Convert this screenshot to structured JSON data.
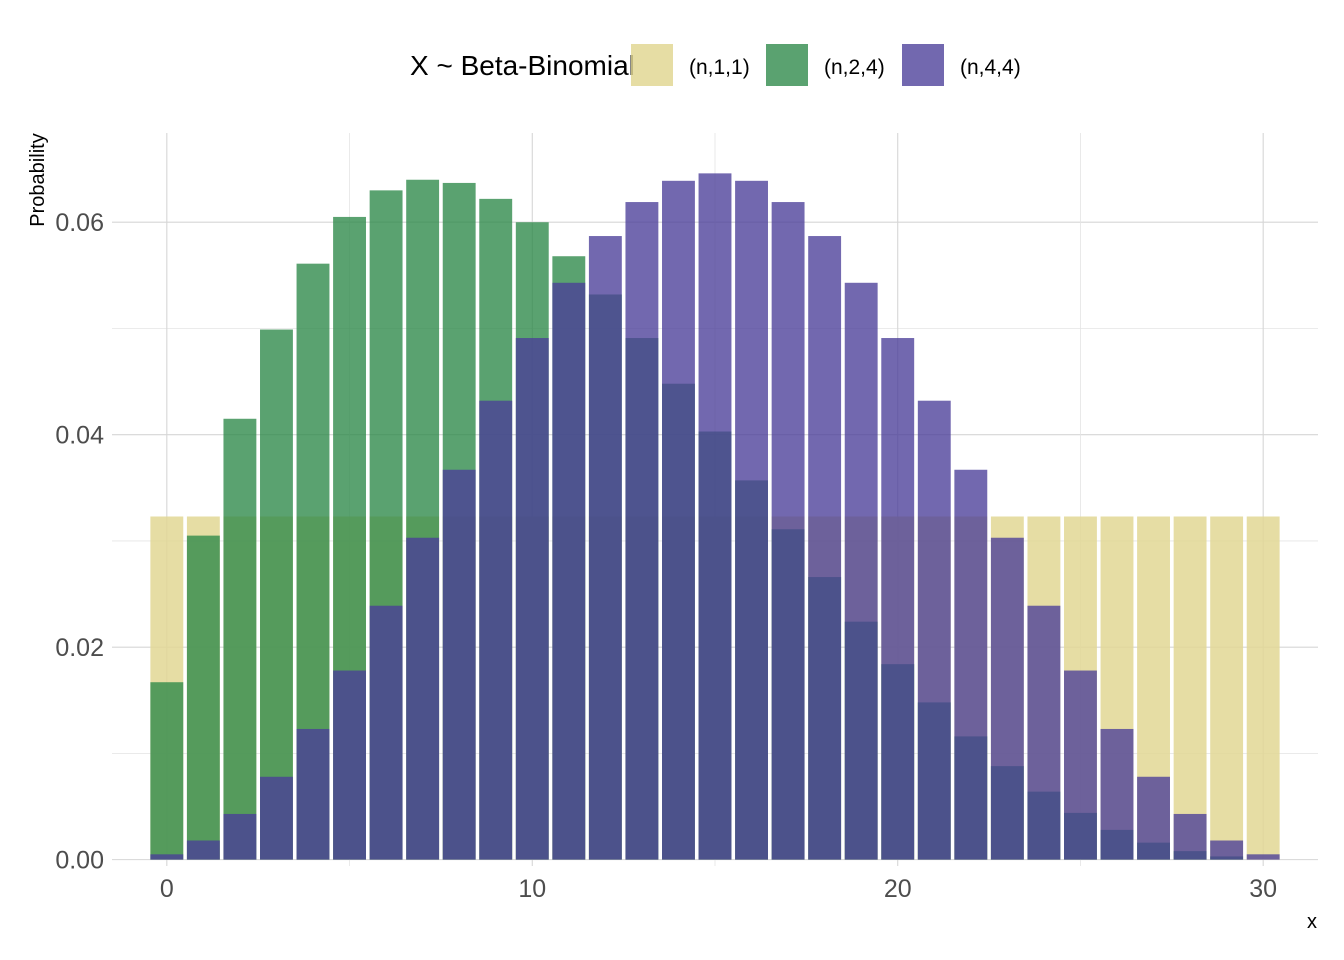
{
  "chart_data": {
    "type": "bar",
    "title": "",
    "xlabel": "x",
    "ylabel": "Probability",
    "xlim": [
      -1.5,
      31.5
    ],
    "ylim": [
      -0.0006,
      0.0684
    ],
    "x_ticks": [
      0,
      10,
      20,
      30
    ],
    "x_tick_labels": [
      "0",
      "10",
      "20",
      "30"
    ],
    "y_ticks": [
      0.0,
      0.02,
      0.04,
      0.06
    ],
    "y_tick_labels": [
      "0.00",
      "0.02",
      "0.04",
      "0.06"
    ],
    "grid": true,
    "legend": {
      "title": "X ~ Beta-Binomial",
      "position": "top",
      "entries": [
        "(n,1,1)",
        "(n,2,4)",
        "(n,4,4)"
      ]
    },
    "x": [
      0,
      1,
      2,
      3,
      4,
      5,
      6,
      7,
      8,
      9,
      10,
      11,
      12,
      13,
      14,
      15,
      16,
      17,
      18,
      19,
      20,
      21,
      22,
      23,
      24,
      25,
      26,
      27,
      28,
      29,
      30
    ],
    "series": [
      {
        "name": "(n,1,1)",
        "color": "#e2d794",
        "values": [
          0.0323,
          0.0323,
          0.0323,
          0.0323,
          0.0323,
          0.0323,
          0.0323,
          0.0323,
          0.0323,
          0.0323,
          0.0323,
          0.0323,
          0.0323,
          0.0323,
          0.0323,
          0.0323,
          0.0323,
          0.0323,
          0.0323,
          0.0323,
          0.0323,
          0.0323,
          0.0323,
          0.0323,
          0.0323,
          0.0323,
          0.0323,
          0.0323,
          0.0323,
          0.0323,
          0.0323
        ]
      },
      {
        "name": "(n,2,4)",
        "color": "#2c8848",
        "values": [
          0.0167,
          0.0305,
          0.0415,
          0.0499,
          0.0561,
          0.0605,
          0.063,
          0.064,
          0.0637,
          0.0622,
          0.06,
          0.0568,
          0.0532,
          0.0491,
          0.0448,
          0.0403,
          0.0357,
          0.0311,
          0.0266,
          0.0224,
          0.0184,
          0.0148,
          0.0116,
          0.0088,
          0.0064,
          0.0044,
          0.0028,
          0.0016,
          0.0008,
          0.0003,
          0.0
        ]
      },
      {
        "name": "(n,4,4)",
        "color": "#4a3d99",
        "values": [
          0.0005,
          0.0018,
          0.0043,
          0.0078,
          0.0123,
          0.0178,
          0.0239,
          0.0303,
          0.0367,
          0.0432,
          0.0491,
          0.0543,
          0.0587,
          0.0619,
          0.0639,
          0.0646,
          0.0639,
          0.0619,
          0.0587,
          0.0543,
          0.0491,
          0.0432,
          0.0367,
          0.0303,
          0.0239,
          0.0178,
          0.0123,
          0.0078,
          0.0043,
          0.0018,
          0.0005
        ]
      }
    ]
  }
}
